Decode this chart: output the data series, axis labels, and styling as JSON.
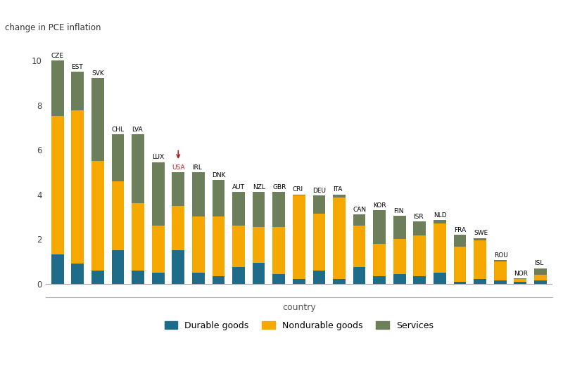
{
  "countries": [
    "CZE",
    "EST",
    "SVK",
    "CHL",
    "LVA",
    "LUX",
    "USA",
    "IRL",
    "DNK",
    "AUT",
    "NZL",
    "GBR",
    "CRI",
    "DEU",
    "ITA",
    "CAN",
    "KOR",
    "FIN",
    "ISR",
    "NLD",
    "FRA",
    "SWE",
    "ROU",
    "NOR",
    "ISL"
  ],
  "durable": [
    1.3,
    0.9,
    0.6,
    1.5,
    0.6,
    0.5,
    1.5,
    0.5,
    0.35,
    0.75,
    0.95,
    0.45,
    0.2,
    0.6,
    0.2,
    0.75,
    0.35,
    0.45,
    0.35,
    0.5,
    0.1,
    0.2,
    0.15,
    0.1,
    0.15
  ],
  "nondurable": [
    6.2,
    6.85,
    4.9,
    3.1,
    3.0,
    2.1,
    2.0,
    2.5,
    2.65,
    1.85,
    1.6,
    2.1,
    3.75,
    2.55,
    3.65,
    1.85,
    1.45,
    1.55,
    1.8,
    2.35,
    1.55,
    1.75,
    0.85,
    0.1,
    0.55
  ],
  "services": [
    2.5,
    1.75,
    3.7,
    2.1,
    3.1,
    2.85,
    1.5,
    2.0,
    1.65,
    1.5,
    1.55,
    1.55,
    0.05,
    0.8,
    0.15,
    0.5,
    1.5,
    1.05,
    0.65,
    -0.15,
    0.55,
    0.1,
    0.05,
    0.05,
    -0.3
  ],
  "colors": {
    "durable": "#1f6b8a",
    "nondurable": "#f5a800",
    "services": "#6d7f5a"
  },
  "ylabel": "change in PCE inflation",
  "xlabel": "country",
  "ylim": [
    -0.6,
    10.8
  ],
  "yticks": [
    0,
    2,
    4,
    6,
    8,
    10
  ],
  "usa_index": 6,
  "background_color": "#ffffff",
  "legend_labels": [
    "Durable goods",
    "Nondurable goods",
    "Services"
  ]
}
